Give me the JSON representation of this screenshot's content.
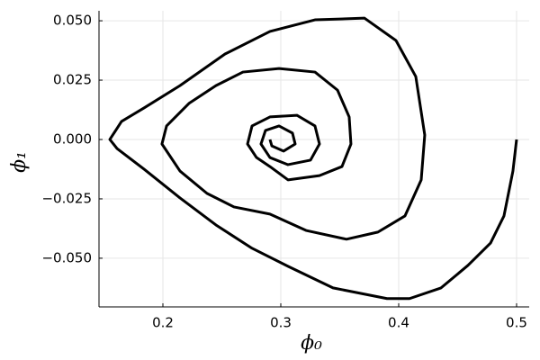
{
  "chart_data": {
    "type": "line",
    "xlabel": "ϕ₀",
    "ylabel": "ϕ₁",
    "xlim": [
      0.1458,
      0.5107
    ],
    "ylim": [
      -0.0705,
      0.0542
    ],
    "xticks": [
      0.2,
      0.3,
      0.4,
      0.5
    ],
    "yticks": [
      {
        "value": 0.05,
        "label": "0.050"
      },
      {
        "value": 0.025,
        "label": "0.025"
      },
      {
        "value": 0,
        "label": "0.000"
      },
      {
        "value": -0.025,
        "label": "−0.025"
      },
      {
        "value": -0.05,
        "label": "−0.050"
      }
    ],
    "grid": true,
    "series": [
      {
        "color": "#000000",
        "x": [
          0.5,
          0.4969,
          0.4893,
          0.4779,
          0.4588,
          0.4359,
          0.4092,
          0.3901,
          0.3443,
          0.3061,
          0.2756,
          0.245,
          0.2145,
          0.184,
          0.1611,
          0.155,
          0.1649,
          0.184,
          0.2145,
          0.2527,
          0.2908,
          0.329,
          0.371,
          0.3977,
          0.4145,
          0.4221,
          0.4191,
          0.4053,
          0.3824,
          0.3557,
          0.3214,
          0.2908,
          0.2603,
          0.2374,
          0.2145,
          0.1992,
          0.2031,
          0.2221,
          0.245,
          0.2679,
          0.2985,
          0.329,
          0.3481,
          0.358,
          0.3595,
          0.3519,
          0.3328,
          0.3061,
          0.2908,
          0.2794,
          0.2718,
          0.2756,
          0.2908,
          0.3137,
          0.329,
          0.3328,
          0.3252,
          0.3061,
          0.2908,
          0.2832,
          0.287,
          0.2985,
          0.3099,
          0.3122,
          0.3023,
          0.2924,
          0.2908
        ],
        "values": [
          0,
          -0.0133,
          -0.0322,
          -0.0436,
          -0.053,
          -0.0625,
          -0.067,
          -0.067,
          -0.0625,
          -0.0534,
          -0.0458,
          -0.036,
          -0.0246,
          -0.0125,
          -0.0038,
          0,
          0.0076,
          0.0133,
          0.0227,
          0.036,
          0.0455,
          0.0504,
          0.0511,
          0.0417,
          0.0265,
          0.0019,
          -0.017,
          -0.0322,
          -0.039,
          -0.042,
          -0.0383,
          -0.0314,
          -0.0284,
          -0.0227,
          -0.0133,
          -0.0019,
          0.0057,
          0.0152,
          0.0227,
          0.0284,
          0.0299,
          0.0284,
          0.0208,
          0.0095,
          -0.0019,
          -0.0114,
          -0.0152,
          -0.017,
          -0.0114,
          -0.0076,
          -0.0019,
          0.0057,
          0.0095,
          0.0102,
          0.0057,
          -0.0019,
          -0.0087,
          -0.0106,
          -0.0076,
          -0.0019,
          0.0038,
          0.0057,
          0.0027,
          -0.0019,
          -0.0049,
          -0.0027,
          0
        ]
      }
    ]
  }
}
